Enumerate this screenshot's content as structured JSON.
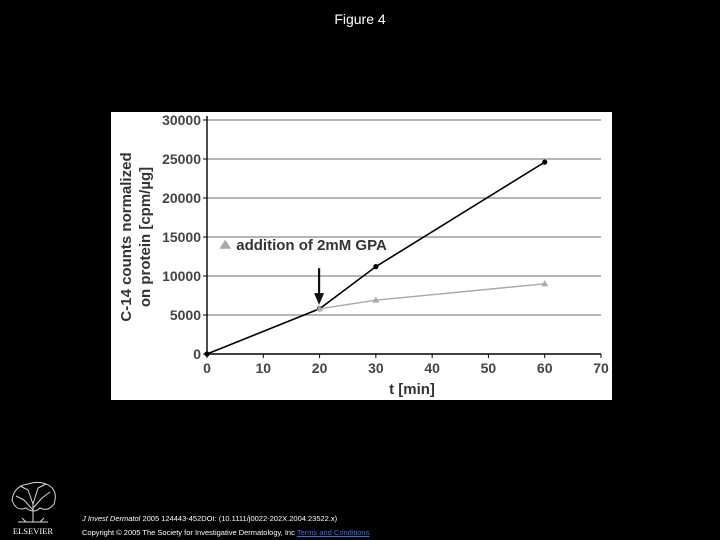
{
  "page": {
    "title": "Figure 4",
    "citation_journal": "J Invest Dermatol",
    "citation_rest": " 2005 124443-452DOI: (10.1111/j0022-202X.2004.23522.x)",
    "copyright_text": "Copyright © 2005 The Society for Investigative Dermatology, Inc ",
    "terms_link": "Terms and Conditions",
    "publisher_logo": "ELSEVIER",
    "link_color": "#3b6fe0"
  },
  "chart_data": {
    "type": "line",
    "title": "",
    "xlabel": "t [min]",
    "ylabel": "C-14 counts normalized\non protein [cpm/µg]",
    "xlim": [
      0,
      70
    ],
    "ylim": [
      0,
      30000
    ],
    "x_ticks": [
      0,
      10,
      20,
      30,
      40,
      50,
      60,
      70
    ],
    "y_ticks": [
      0,
      5000,
      10000,
      15000,
      20000,
      25000,
      30000
    ],
    "grid": "horizontal",
    "annotation": "addition of 2mM GPA",
    "series": [
      {
        "color": "#000000",
        "marker": "circle",
        "x": [
          0,
          20,
          30,
          60
        ],
        "y": [
          0,
          5800,
          11200,
          24600
        ]
      },
      {
        "name": "addition of 2mM GPA",
        "color": "#a9a9a9",
        "marker": "triangle",
        "x": [
          20,
          30,
          60
        ],
        "y": [
          5800,
          6900,
          9000
        ]
      }
    ]
  }
}
